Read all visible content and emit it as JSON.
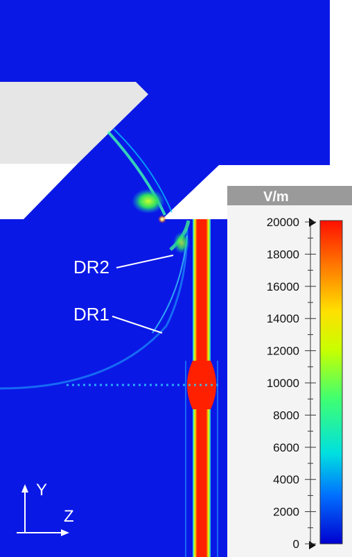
{
  "field_plot": {
    "labels": {
      "dr2": "DR2",
      "dr1": "DR1"
    },
    "axes": {
      "y": "Y",
      "z": "Z"
    },
    "colors": {
      "background": "#0a18e6",
      "structure": "#e8e8e8",
      "beam_red": "#ee1010"
    }
  },
  "colorbar": {
    "unit": "V/m",
    "ticks": [
      "20000",
      "18000",
      "16000",
      "14000",
      "12000",
      "10000",
      "8000",
      "6000",
      "4000",
      "2000",
      "0"
    ],
    "min": 0,
    "max": 20000,
    "gradient": [
      "#0000d0",
      "#0070ff",
      "#00e0e0",
      "#40ff70",
      "#c8ff00",
      "#ffe000",
      "#ff8000",
      "#ff1000"
    ]
  }
}
